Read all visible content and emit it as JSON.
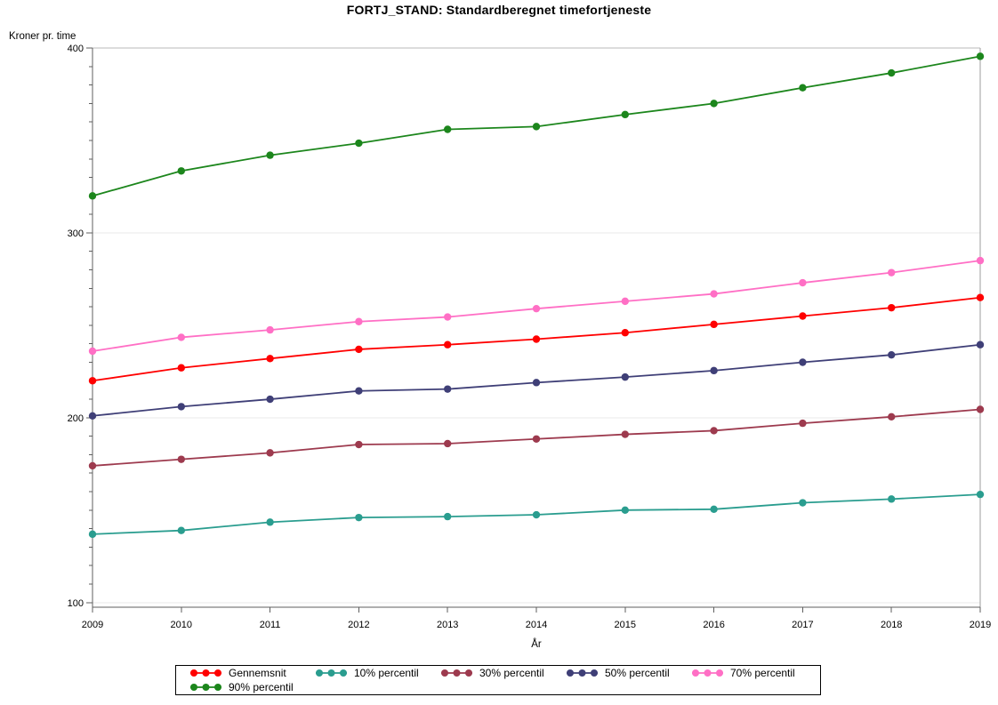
{
  "page": {
    "title": "FORTJ_STAND: Standardberegnet timefortjeneste"
  },
  "chart_data": {
    "type": "line",
    "title": "FORTJ_STAND: Standardberegnet timefortjeneste",
    "xlabel": "År",
    "ylabel": "Kroner pr. time",
    "x": [
      2009,
      2010,
      2011,
      2012,
      2013,
      2014,
      2015,
      2016,
      2017,
      2018,
      2019
    ],
    "x_tick_labels": [
      "2009",
      "2010",
      "2011",
      "2012",
      "2013",
      "2014",
      "2015",
      "2016",
      "2017",
      "2018",
      "2019"
    ],
    "y_tick_labels": [
      "100",
      "200",
      "300",
      "400"
    ],
    "ylim": [
      97.5,
      400
    ],
    "y_major_step": 100,
    "y_minor_step": 10,
    "grid": "horizontal-light",
    "legend_position": "bottom-boxed",
    "series": [
      {
        "name": "Gennemsnit",
        "color": "#FF0000",
        "values": [
          220,
          227,
          232,
          237,
          239.5,
          242.5,
          246,
          250.5,
          255,
          259.5,
          265
        ]
      },
      {
        "name": "10% percentil",
        "color": "#2A9D8F",
        "values": [
          137,
          139,
          143.5,
          146,
          146.5,
          147.5,
          150,
          150.5,
          154,
          156,
          158.5
        ]
      },
      {
        "name": "30% percentil",
        "color": "#9D3A4E",
        "values": [
          174,
          177.5,
          181,
          185.5,
          186,
          188.5,
          191,
          193,
          197,
          200.5,
          204.5
        ]
      },
      {
        "name": "50% percentil",
        "color": "#3F3F77",
        "values": [
          201,
          206,
          210,
          214.5,
          215.5,
          219,
          222,
          225.5,
          230,
          234,
          239.5
        ]
      },
      {
        "name": "70% percentil",
        "color": "#FF6FC5",
        "values": [
          236,
          243.5,
          247.5,
          252,
          254.5,
          259,
          263,
          267,
          273,
          278.5,
          285
        ]
      },
      {
        "name": "90% percentil",
        "color": "#1C861C",
        "values": [
          320,
          333.5,
          342,
          348.5,
          356,
          357.5,
          364,
          370,
          378.5,
          386.5,
          395.5
        ]
      }
    ]
  }
}
